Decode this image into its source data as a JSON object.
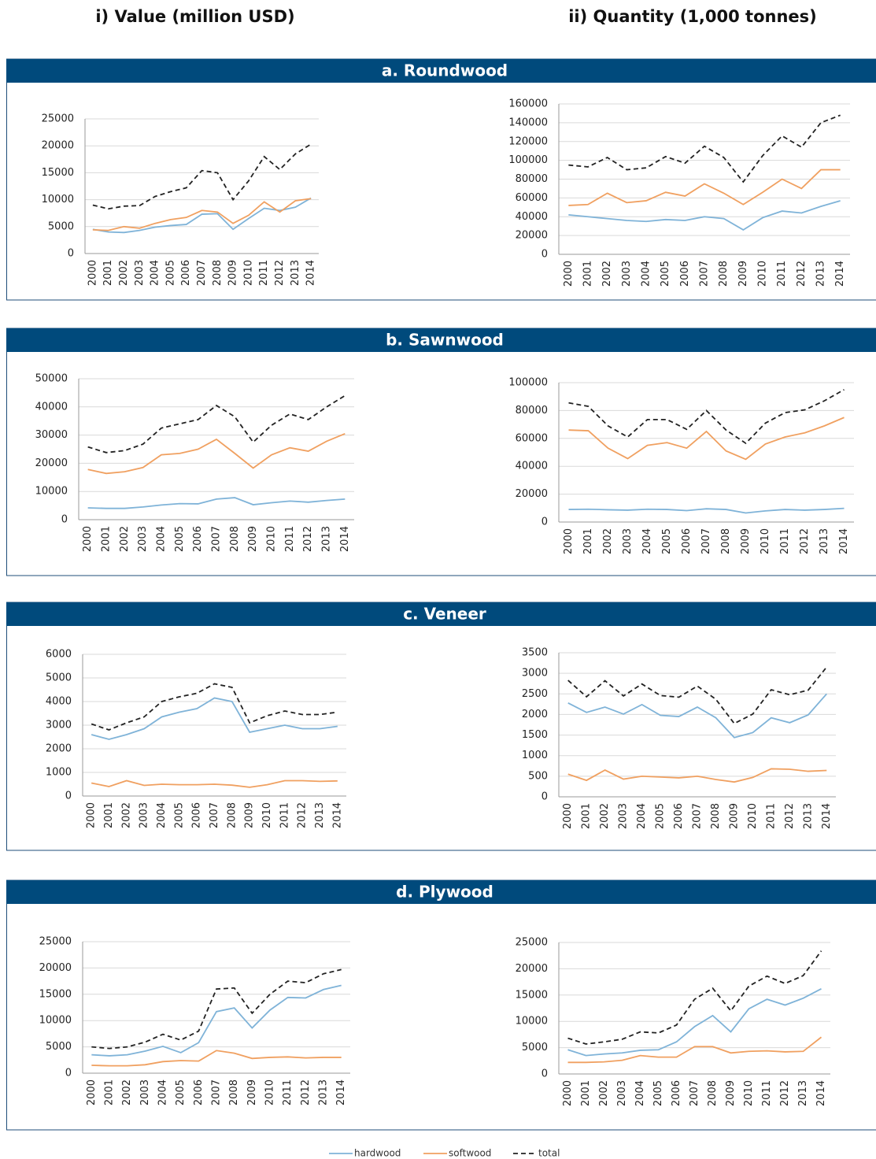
{
  "columns": [
    "i) Value (million USD)",
    "ii) Quantity (1,000 tonnes)"
  ],
  "sections": [
    "a. Roundwood",
    "b. Sawnwood",
    "c. Veneer",
    "d. Plywood"
  ],
  "chart_data": [
    {
      "type": "line",
      "categories": [
        "2000",
        "2001",
        "2002",
        "2003",
        "2004",
        "2005",
        "2006",
        "2007",
        "2008",
        "2009",
        "2010",
        "2011",
        "2012",
        "2013",
        "2014"
      ],
      "ylim": [
        0,
        25000
      ],
      "yticks": [
        0,
        5000,
        10000,
        15000,
        20000,
        25000
      ],
      "grid": true,
      "series": [
        {
          "name": "hardwood",
          "color": "#7fb3d8",
          "style": "solid",
          "values": [
            4500,
            4000,
            3900,
            4300,
            4900,
            5200,
            5400,
            7300,
            7400,
            4500,
            6500,
            8400,
            8000,
            8600,
            10300
          ]
        },
        {
          "name": "softwood",
          "color": "#f0a060",
          "style": "solid",
          "values": [
            4400,
            4300,
            5000,
            4700,
            5600,
            6300,
            6700,
            8000,
            7700,
            5600,
            7100,
            9600,
            7700,
            9800,
            10200
          ]
        },
        {
          "name": "total",
          "color": "#222222",
          "style": "dashed",
          "values": [
            9000,
            8300,
            8800,
            8900,
            10600,
            11500,
            12200,
            15400,
            15000,
            10000,
            13500,
            18000,
            15600,
            18500,
            20300
          ]
        }
      ]
    },
    {
      "type": "line",
      "categories": [
        "2000",
        "2001",
        "2002",
        "2003",
        "2004",
        "2005",
        "2006",
        "2007",
        "2008",
        "2009",
        "2010",
        "2011",
        "2012",
        "2013",
        "2014"
      ],
      "ylim": [
        0,
        160000
      ],
      "yticks": [
        0,
        20000,
        40000,
        60000,
        80000,
        100000,
        120000,
        140000,
        160000
      ],
      "grid": true,
      "series": [
        {
          "name": "hardwood",
          "color": "#7fb3d8",
          "style": "solid",
          "values": [
            42000,
            40000,
            38000,
            36000,
            35000,
            37000,
            36000,
            40000,
            38000,
            26000,
            39000,
            46000,
            44000,
            51000,
            57000
          ]
        },
        {
          "name": "softwood",
          "color": "#f0a060",
          "style": "solid",
          "values": [
            52000,
            53000,
            65000,
            55000,
            57000,
            66000,
            62000,
            75000,
            65000,
            53000,
            66000,
            80000,
            70000,
            90000,
            90000
          ]
        },
        {
          "name": "total",
          "color": "#222222",
          "style": "dashed",
          "values": [
            95000,
            93000,
            103000,
            90000,
            92000,
            104000,
            97000,
            115000,
            103000,
            77000,
            105000,
            126000,
            114000,
            140000,
            148000
          ]
        }
      ]
    },
    {
      "type": "line",
      "categories": [
        "2000",
        "2001",
        "2002",
        "2003",
        "2004",
        "2005",
        "2006",
        "2007",
        "2008",
        "2009",
        "2010",
        "2011",
        "2012",
        "2013",
        "2014"
      ],
      "ylim": [
        0,
        50000
      ],
      "yticks": [
        0,
        10000,
        20000,
        30000,
        40000,
        50000
      ],
      "grid": true,
      "series": [
        {
          "name": "hardwood",
          "color": "#7fb3d8",
          "style": "solid",
          "values": [
            4200,
            4000,
            4000,
            4500,
            5200,
            5700,
            5600,
            7300,
            7800,
            5300,
            6000,
            6600,
            6200,
            6800,
            7300
          ]
        },
        {
          "name": "softwood",
          "color": "#f0a060",
          "style": "solid",
          "values": [
            17800,
            16400,
            17000,
            18500,
            23000,
            23500,
            25000,
            28500,
            23500,
            18300,
            23000,
            25500,
            24300,
            27800,
            30500
          ]
        },
        {
          "name": "total",
          "color": "#222222",
          "style": "dashed",
          "values": [
            25800,
            23800,
            24500,
            26800,
            32500,
            34000,
            35500,
            40500,
            36500,
            27500,
            33500,
            37500,
            35500,
            40000,
            44000
          ]
        }
      ]
    },
    {
      "type": "line",
      "categories": [
        "2000",
        "2001",
        "2002",
        "2003",
        "2004",
        "2005",
        "2006",
        "2007",
        "2008",
        "2009",
        "2010",
        "2011",
        "2012",
        "2013",
        "2014"
      ],
      "ylim": [
        0,
        100000
      ],
      "yticks": [
        0,
        20000,
        40000,
        60000,
        80000,
        100000
      ],
      "grid": true,
      "series": [
        {
          "name": "hardwood",
          "color": "#7fb3d8",
          "style": "solid",
          "values": [
            9000,
            9200,
            8800,
            8500,
            9200,
            9000,
            8200,
            9500,
            9000,
            6500,
            8000,
            9000,
            8500,
            9000,
            9800
          ]
        },
        {
          "name": "softwood",
          "color": "#f0a060",
          "style": "solid",
          "values": [
            66000,
            65500,
            53000,
            45500,
            55000,
            57000,
            53000,
            65000,
            51000,
            45000,
            56000,
            61000,
            64000,
            69000,
            75000
          ]
        },
        {
          "name": "total",
          "color": "#222222",
          "style": "dashed",
          "values": [
            85500,
            83000,
            69000,
            61000,
            73500,
            73500,
            66500,
            80000,
            66000,
            56500,
            71000,
            78500,
            80500,
            87000,
            95000
          ]
        }
      ]
    },
    {
      "type": "line",
      "categories": [
        "2000",
        "2001",
        "2002",
        "2003",
        "2004",
        "2005",
        "2006",
        "2007",
        "2008",
        "2009",
        "2010",
        "2011",
        "2012",
        "2013",
        "2014"
      ],
      "ylim": [
        0,
        6000
      ],
      "yticks": [
        0,
        1000,
        2000,
        3000,
        4000,
        5000,
        6000
      ],
      "grid": true,
      "series": [
        {
          "name": "hardwood",
          "color": "#7fb3d8",
          "style": "solid",
          "values": [
            2600,
            2400,
            2600,
            2850,
            3350,
            3550,
            3700,
            4150,
            4000,
            2700,
            2850,
            3000,
            2850,
            2850,
            2950
          ]
        },
        {
          "name": "softwood",
          "color": "#f0a060",
          "style": "solid",
          "values": [
            550,
            400,
            650,
            450,
            500,
            480,
            480,
            500,
            460,
            370,
            480,
            650,
            650,
            620,
            640
          ]
        },
        {
          "name": "total",
          "color": "#222222",
          "style": "dashed",
          "values": [
            3050,
            2800,
            3100,
            3350,
            4000,
            4200,
            4350,
            4750,
            4600,
            3100,
            3400,
            3600,
            3450,
            3450,
            3550
          ]
        }
      ]
    },
    {
      "type": "line",
      "categories": [
        "2000",
        "2001",
        "2002",
        "2003",
        "2004",
        "2005",
        "2006",
        "2007",
        "2008",
        "2009",
        "2010",
        "2011",
        "2012",
        "2013",
        "2014"
      ],
      "ylim": [
        0,
        3500
      ],
      "yticks": [
        0,
        500,
        1000,
        1500,
        2000,
        2500,
        3000,
        3500
      ],
      "grid": true,
      "series": [
        {
          "name": "hardwood",
          "color": "#7fb3d8",
          "style": "solid",
          "values": [
            2280,
            2050,
            2180,
            2010,
            2240,
            1980,
            1950,
            2180,
            1920,
            1440,
            1560,
            1920,
            1800,
            1990,
            2500
          ]
        },
        {
          "name": "softwood",
          "color": "#f0a060",
          "style": "solid",
          "values": [
            550,
            400,
            650,
            430,
            500,
            480,
            460,
            500,
            420,
            360,
            470,
            680,
            670,
            620,
            640
          ]
        },
        {
          "name": "total",
          "color": "#222222",
          "style": "dashed",
          "values": [
            2830,
            2430,
            2820,
            2450,
            2740,
            2460,
            2420,
            2690,
            2370,
            1780,
            2010,
            2600,
            2480,
            2590,
            3150
          ]
        }
      ]
    },
    {
      "type": "line",
      "categories": [
        "2000",
        "2001",
        "2002",
        "2003",
        "2004",
        "2005",
        "2006",
        "2007",
        "2008",
        "2009",
        "2010",
        "2011",
        "2012",
        "2013",
        "2014"
      ],
      "ylim": [
        0,
        25000
      ],
      "yticks": [
        0,
        5000,
        10000,
        15000,
        20000,
        25000
      ],
      "grid": true,
      "series": [
        {
          "name": "hardwood",
          "color": "#7fb3d8",
          "style": "solid",
          "values": [
            3500,
            3300,
            3500,
            4200,
            5100,
            3900,
            5800,
            11700,
            12400,
            8600,
            12000,
            14400,
            14300,
            15900,
            16700
          ]
        },
        {
          "name": "softwood",
          "color": "#f0a060",
          "style": "solid",
          "values": [
            1500,
            1400,
            1400,
            1600,
            2200,
            2400,
            2300,
            4300,
            3800,
            2800,
            3000,
            3100,
            2900,
            3000,
            3000
          ]
        },
        {
          "name": "total",
          "color": "#222222",
          "style": "dashed",
          "values": [
            5000,
            4700,
            5000,
            5900,
            7400,
            6300,
            8000,
            16000,
            16200,
            11400,
            15000,
            17500,
            17200,
            18900,
            19700
          ]
        }
      ]
    },
    {
      "type": "line",
      "categories": [
        "2000",
        "2001",
        "2002",
        "2003",
        "2004",
        "2005",
        "2006",
        "2007",
        "2008",
        "2009",
        "2010",
        "2011",
        "2012",
        "2013",
        "2014"
      ],
      "ylim": [
        0,
        25000
      ],
      "yticks": [
        0,
        5000,
        10000,
        15000,
        20000,
        25000
      ],
      "grid": true,
      "series": [
        {
          "name": "hardwood",
          "color": "#7fb3d8",
          "style": "solid",
          "values": [
            4600,
            3500,
            3800,
            4000,
            4500,
            4600,
            6100,
            9000,
            11100,
            8000,
            12400,
            14200,
            13100,
            14400,
            16200
          ]
        },
        {
          "name": "softwood",
          "color": "#f0a060",
          "style": "solid",
          "values": [
            2200,
            2200,
            2300,
            2600,
            3500,
            3200,
            3200,
            5200,
            5200,
            4000,
            4300,
            4400,
            4200,
            4300,
            7000
          ]
        },
        {
          "name": "total",
          "color": "#222222",
          "style": "dashed",
          "values": [
            6800,
            5700,
            6100,
            6600,
            8000,
            7800,
            9300,
            14200,
            16300,
            12000,
            16700,
            18600,
            17200,
            18700,
            23400
          ]
        }
      ]
    }
  ]
}
